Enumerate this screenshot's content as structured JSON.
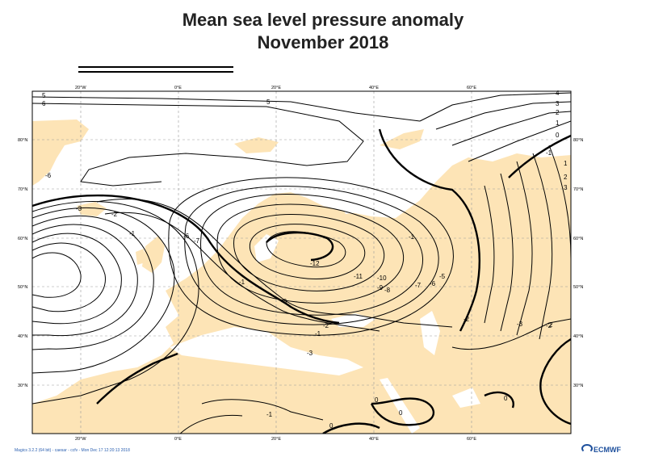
{
  "title": {
    "line1": "Mean sea level pressure anomaly",
    "line2": "November 2018"
  },
  "map": {
    "projection": "lat-lon",
    "lon_range": [
      -30,
      80
    ],
    "lat_range": [
      20,
      88
    ],
    "lon_ticks": [
      "20°W",
      "0°E",
      "20°E",
      "40°E",
      "60°E"
    ],
    "lat_ticks": [
      "30°N",
      "40°N",
      "50°N",
      "60°N",
      "70°N",
      "80°N"
    ],
    "land_color": "#fde4b6",
    "sea_color": "#ffffff",
    "grid": "dashed"
  },
  "contour_labels": [
    "5",
    "6",
    "5",
    "4",
    "3",
    "2",
    "1",
    "0",
    "-1",
    "1",
    "2",
    "3",
    "-6",
    "-3",
    "-2",
    "-1",
    "-6",
    "-7",
    "-11",
    "-12",
    "-10",
    "-9",
    "-8",
    "-7",
    "-6",
    "-5",
    "-3",
    "-1",
    "-2",
    "-3",
    "-1",
    "-2",
    "-3",
    "-2",
    "-1",
    "0",
    "0",
    "0",
    "0",
    "-1",
    "2"
  ],
  "footer": {
    "text": "Magics 3.2.2 (64 bit) - caesar - ccfv - Mon Dec 17 12:20:13 2018",
    "logo": "ECMWF"
  }
}
